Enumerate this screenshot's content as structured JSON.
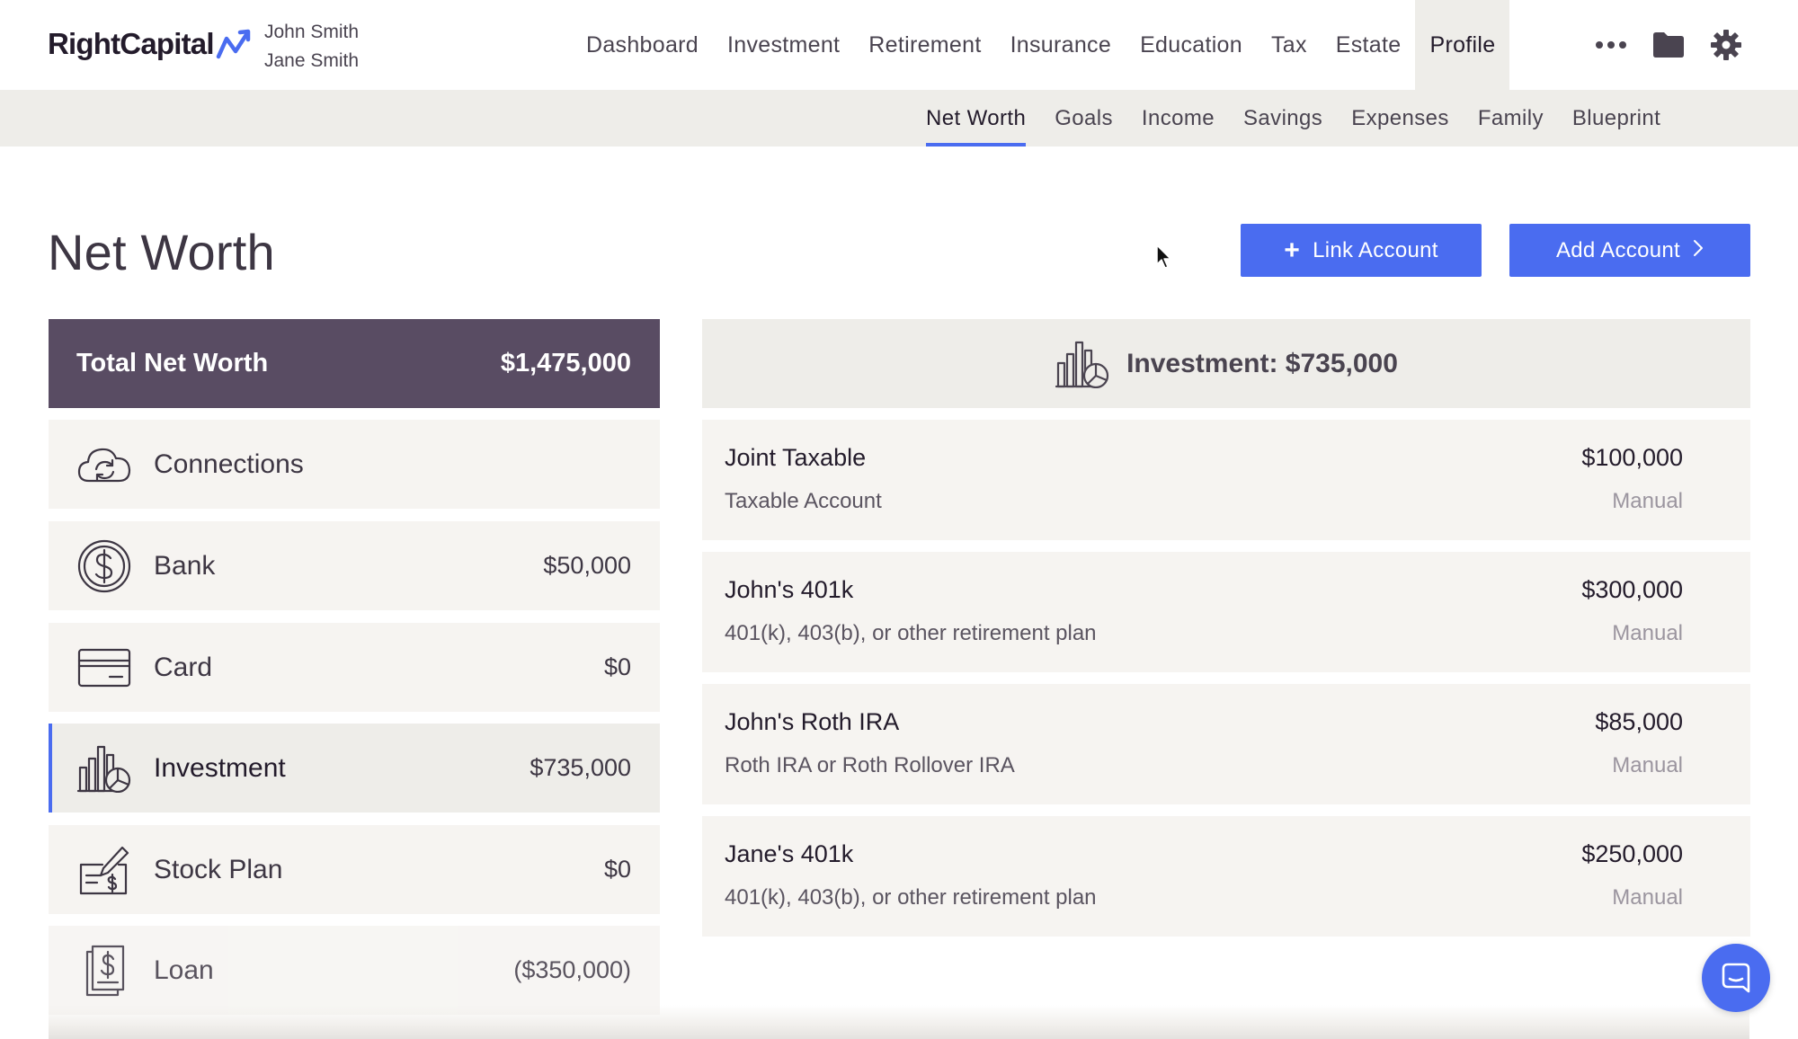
{
  "brand": {
    "name": "RightCapital",
    "accent": "#4a6cf0",
    "dark": "#594c63"
  },
  "clients": [
    "John Smith",
    "Jane Smith"
  ],
  "main_nav": [
    {
      "label": "Dashboard",
      "active": false
    },
    {
      "label": "Investment",
      "active": false
    },
    {
      "label": "Retirement",
      "active": false
    },
    {
      "label": "Insurance",
      "active": false
    },
    {
      "label": "Education",
      "active": false
    },
    {
      "label": "Tax",
      "active": false
    },
    {
      "label": "Estate",
      "active": false
    },
    {
      "label": "Profile",
      "active": true
    }
  ],
  "nav_icons": [
    "more-icon",
    "folder-icon",
    "gear-icon"
  ],
  "sub_nav": [
    {
      "label": "Net Worth",
      "active": true
    },
    {
      "label": "Goals",
      "active": false
    },
    {
      "label": "Income",
      "active": false
    },
    {
      "label": "Savings",
      "active": false
    },
    {
      "label": "Expenses",
      "active": false
    },
    {
      "label": "Family",
      "active": false
    },
    {
      "label": "Blueprint",
      "active": false
    }
  ],
  "page": {
    "title": "Net Worth",
    "link_account_label": "Link Account",
    "add_account_label": "Add Account"
  },
  "total": {
    "label": "Total Net Worth",
    "value": "$1,475,000"
  },
  "categories": [
    {
      "label": "Connections",
      "value": "",
      "icon": "cloud-sync-icon"
    },
    {
      "label": "Bank",
      "value": "$50,000",
      "icon": "dollar-coin-icon"
    },
    {
      "label": "Card",
      "value": "$0",
      "icon": "credit-card-icon"
    },
    {
      "label": "Investment",
      "value": "$735,000",
      "icon": "investment-chart-icon",
      "selected": true
    },
    {
      "label": "Stock Plan",
      "value": "$0",
      "icon": "stock-plan-icon"
    },
    {
      "label": "Loan",
      "value": "($350,000)",
      "icon": "loan-document-icon"
    }
  ],
  "detail": {
    "header": "Investment: $735,000",
    "accounts": [
      {
        "name": "Joint Taxable",
        "type": "Taxable Account",
        "value": "$100,000",
        "source": "Manual"
      },
      {
        "name": "John's 401k",
        "type": "401(k), 403(b), or other retirement plan",
        "value": "$300,000",
        "source": "Manual"
      },
      {
        "name": "John's Roth IRA",
        "type": "Roth IRA or Roth Rollover IRA",
        "value": "$85,000",
        "source": "Manual"
      },
      {
        "name": "Jane's 401k",
        "type": "401(k), 403(b), or other retirement plan",
        "value": "$250,000",
        "source": "Manual"
      }
    ]
  }
}
